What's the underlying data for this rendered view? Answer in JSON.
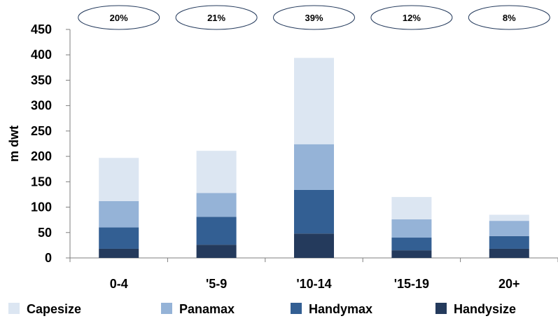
{
  "chart_data": {
    "type": "bar",
    "stacked": true,
    "categories": [
      "0-4",
      "'5-9",
      "'10-14",
      "'15-19",
      "20+"
    ],
    "series": [
      {
        "name": "Handysize",
        "color": "#243a5c",
        "values": [
          18,
          26,
          48,
          15,
          18
        ]
      },
      {
        "name": "Handymax",
        "color": "#335f93",
        "values": [
          42,
          55,
          86,
          25,
          25
        ]
      },
      {
        "name": "Panamax",
        "color": "#95b3d7",
        "values": [
          52,
          47,
          90,
          36,
          30
        ]
      },
      {
        "name": "Capesize",
        "color": "#dce6f2",
        "values": [
          85,
          83,
          170,
          44,
          12
        ]
      }
    ],
    "legend_order": [
      "Capesize",
      "Panamax",
      "Handymax",
      "Handysize"
    ],
    "percent_labels": [
      "20%",
      "21%",
      "39%",
      "12%",
      "8%"
    ],
    "ylabel": "m dwt",
    "xlabel": "",
    "ylim": [
      0,
      450
    ],
    "yticks": [
      0,
      50,
      100,
      150,
      200,
      250,
      300,
      350,
      400,
      450
    ],
    "grid": false,
    "legend_position": "bottom"
  }
}
